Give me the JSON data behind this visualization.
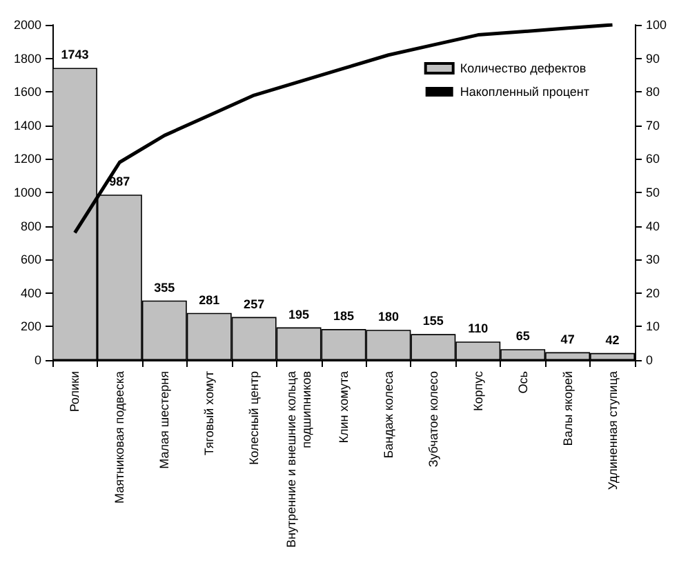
{
  "chart_data": {
    "type": "bar",
    "categories": [
      "Ролики",
      "Маятниковая подвеска",
      "Малая шестерня",
      "Тяговый хомут",
      "Колесный центр",
      "Внутренние и внешние кольца подшипников",
      "Клин хомута",
      "Бандаж колеса",
      "Зубчатое колесо",
      "Корпус",
      "Ось",
      "Валы якорей",
      "Удлиненная ступица"
    ],
    "series": [
      {
        "name": "Количество дефектов",
        "color": "#c0c0c0",
        "values": [
          1743,
          987,
          355,
          281,
          257,
          195,
          185,
          180,
          155,
          110,
          65,
          47,
          42
        ],
        "value_labels": [
          "1743",
          "987",
          "355",
          "281",
          "257",
          "195",
          "185",
          "180",
          "155",
          "110",
          "65",
          "47",
          "42"
        ]
      },
      {
        "name": "Накопленный процент",
        "type": "line",
        "axis": "y2",
        "color": "#000000",
        "values": [
          38,
          59,
          67,
          73,
          79,
          83,
          87,
          91,
          94,
          97,
          98,
          99,
          100
        ]
      }
    ],
    "ylim": [
      0,
      2000
    ],
    "yticks": [
      0,
      200,
      400,
      600,
      800,
      1000,
      1200,
      1400,
      1600,
      1800,
      2000
    ],
    "y2lim": [
      0,
      100
    ],
    "y2ticks": [
      0,
      10,
      20,
      30,
      40,
      50,
      60,
      70,
      80,
      90,
      100
    ],
    "legend": "top right",
    "grid": false,
    "marker": "none"
  }
}
